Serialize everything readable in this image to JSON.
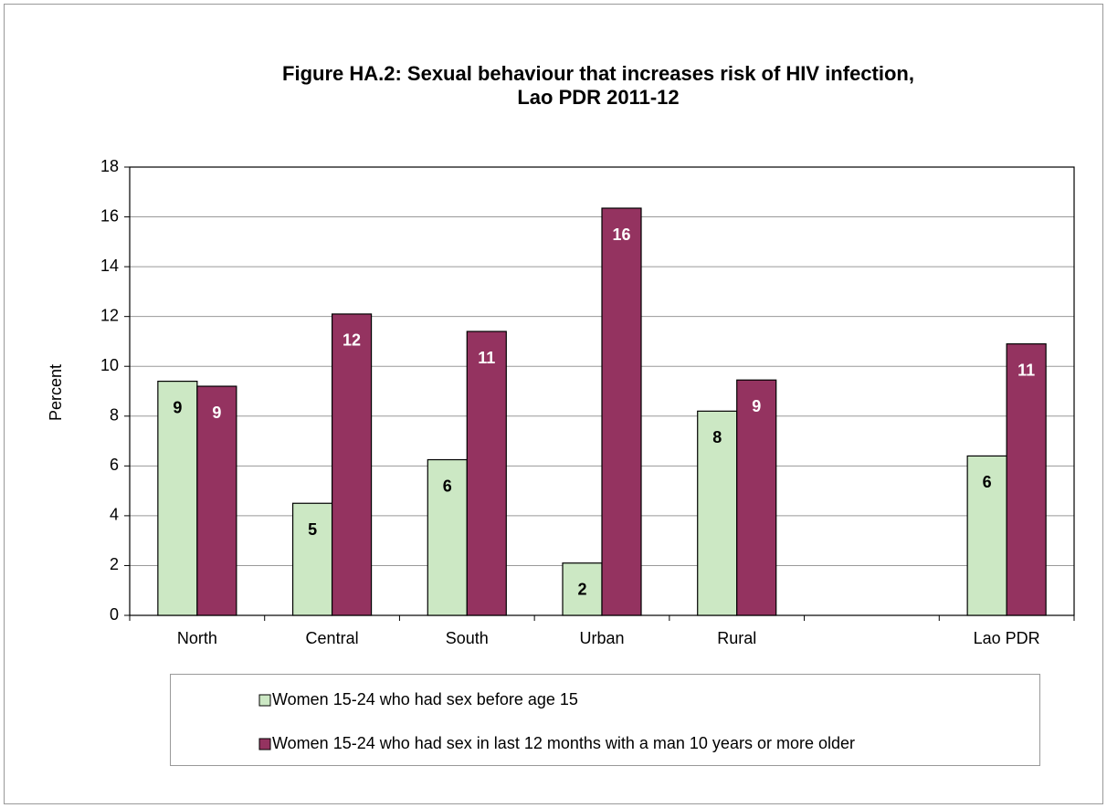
{
  "chart_data": {
    "type": "bar",
    "title": [
      "Figure HA.2: Sexual behaviour that increases risk of HIV infection,",
      "Lao PDR 2011-12"
    ],
    "ylabel": "Percent",
    "categories": [
      "North",
      "Central",
      "South",
      "Urban",
      "Rural",
      null,
      "Lao PDR"
    ],
    "series": [
      {
        "name": "Women 15-24 who had sex before age 15",
        "color": "#cce8c4",
        "label_color": "#000000",
        "values": [
          9.4,
          4.5,
          6.25,
          2.1,
          8.2,
          null,
          6.4
        ],
        "value_labels": [
          "9",
          "5",
          "6",
          "2",
          "8",
          null,
          "6"
        ]
      },
      {
        "name": "Women 15-24 who had sex in last 12 months with a man 10 years or more older",
        "color": "#943360",
        "label_color": "#ffffff",
        "values": [
          9.2,
          12.1,
          11.4,
          16.35,
          9.45,
          null,
          10.9
        ],
        "value_labels": [
          "9",
          "12",
          "11",
          "16",
          "9",
          null,
          "11"
        ]
      }
    ],
    "ylim": [
      0,
      18
    ],
    "yticks": [
      0,
      2,
      4,
      6,
      8,
      10,
      12,
      14,
      16,
      18
    ],
    "grid": true,
    "legend": "bottom"
  }
}
